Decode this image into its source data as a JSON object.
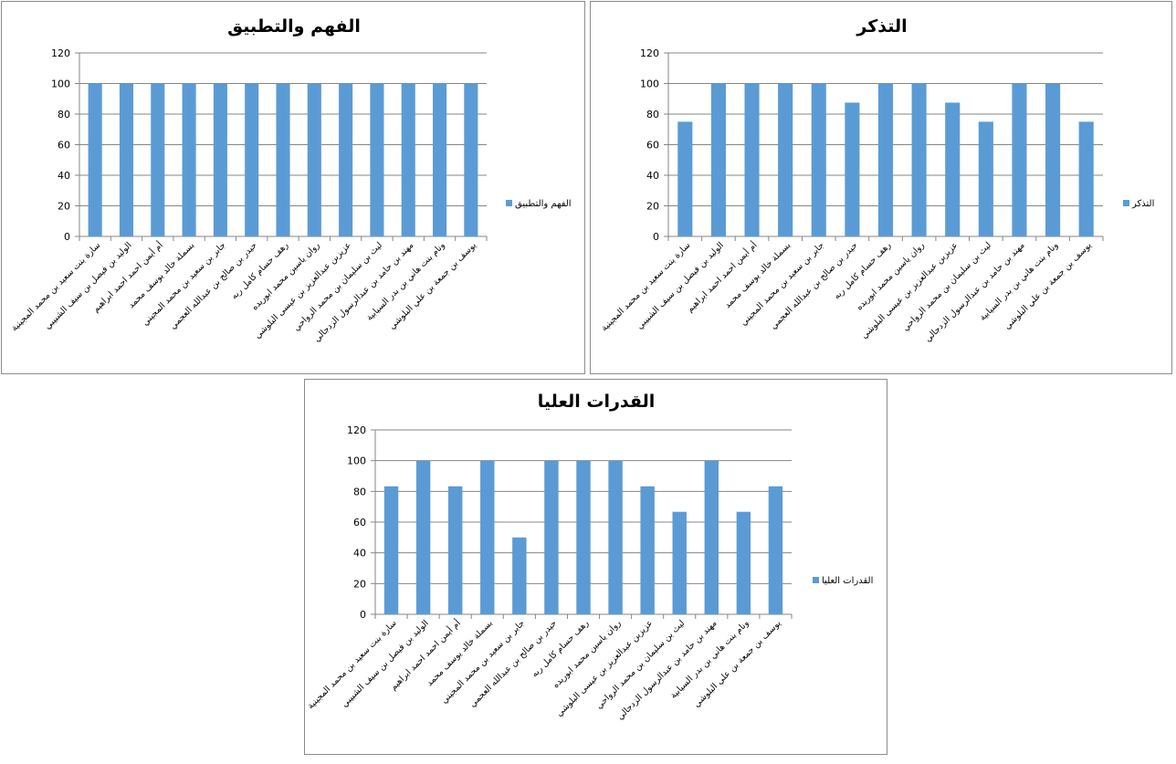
{
  "chart_data": [
    {
      "type": "bar",
      "title": "الفهم والتطبيق",
      "series": [
        {
          "name": "الفهم والتطبيق",
          "values": [
            100,
            100,
            100,
            100,
            100,
            100,
            100,
            100,
            100,
            100,
            100,
            100,
            100
          ]
        }
      ],
      "categories": [
        "سارة بنت سعيد بن محمد المجينية",
        "الوليد بن فيصل بن سيف الشبيبي",
        "أم أيمن احمد احمد ابراهيم",
        "بسملة خالد يوسف محمد",
        "جابر بن سعيد بن محمد المجيني",
        "حيدر بن صالح بن عبدالله العجمي",
        "رهف حسام كامل ربه",
        "روان ياسين محمد ابوريده",
        "عزيزبن عبدالعزيز بن عيسى البلوشي",
        "ليث بن سليمان بن محمد الرواحي",
        "مهند بن حامد بن عبدالرسول الزدجالي",
        "ونام بنت هاني بن بدر السيابية",
        "يوسف بن جمعة بن علي البلوشي"
      ],
      "ylim": [
        0,
        120
      ],
      "yticks": [
        0,
        20,
        40,
        60,
        80,
        100,
        120
      ],
      "grid": true,
      "legend": "right",
      "color": "#5b9bd5"
    },
    {
      "type": "bar",
      "title": "التذكر",
      "series": [
        {
          "name": "التذكر",
          "values": [
            75,
            100,
            100,
            100,
            100,
            87.5,
            100,
            100,
            87.5,
            75,
            100,
            100,
            75
          ]
        }
      ],
      "categories": [
        "سارة بنت سعيد بن محمد المجينية",
        "الوليد بن فيصل بن سيف الشبيبي",
        "أم أيمن احمد احمد ابراهيم",
        "بسملة خالد يوسف محمد",
        "جابر بن سعيد بن محمد المجيني",
        "حيدر بن صالح بن عبدالله العجمي",
        "رهف حسام كامل ربه",
        "روان ياسين محمد ابوريده",
        "عزيزبن عبدالعزيز بن عيسى البلوشي",
        "ليث بن سليمان بن محمد الرواحي",
        "مهند بن حامد بن عبدالرسول الزدجالي",
        "ونام بنت هاني بن بدر السيابية",
        "يوسف بن جمعة بن علي البلوشي"
      ],
      "ylim": [
        0,
        120
      ],
      "yticks": [
        0,
        20,
        40,
        60,
        80,
        100,
        120
      ],
      "grid": true,
      "legend": "right",
      "color": "#5b9bd5"
    },
    {
      "type": "bar",
      "title": "القدرات العليا",
      "series": [
        {
          "name": "القدرات العليا",
          "values": [
            83.3,
            100,
            83.3,
            100,
            50,
            100,
            100,
            100,
            83.3,
            66.7,
            100,
            66.7,
            83.3
          ]
        }
      ],
      "categories": [
        "سارة بنت سعيد بن محمد المجينية",
        "الوليد بن فيصل بن سيف الشبيبي",
        "أم أيمن احمد احمد ابراهيم",
        "بسملة خالد يوسف محمد",
        "جابر بن سعيد بن محمد المجيني",
        "حيدر بن صالح بن عبدالله العجمي",
        "رهف حسام كامل ربه",
        "روان ياسين محمد ابوريده",
        "عزيزبن عبدالعزيز بن عيسى البلوشي",
        "ليث بن سليمان بن محمد الرواحي",
        "مهند بن حامد بن عبدالرسول الزدجالي",
        "ونام بنت هاني بن بدر السيابية",
        "يوسف بن جمعة بن علي البلوشي"
      ],
      "ylim": [
        0,
        120
      ],
      "yticks": [
        0,
        20,
        40,
        60,
        80,
        100,
        120
      ],
      "grid": true,
      "legend": "right",
      "color": "#5b9bd5"
    }
  ]
}
